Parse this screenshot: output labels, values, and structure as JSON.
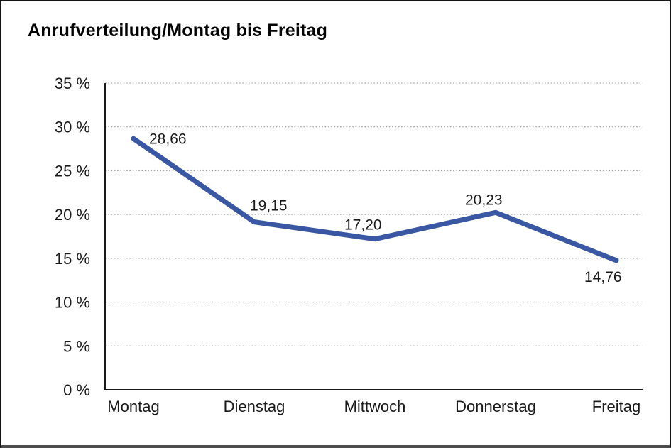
{
  "chart_data": {
    "type": "line",
    "title": "Anrufverteilung/Montag bis Freitag",
    "categories": [
      "Montag",
      "Dienstag",
      "Mittwoch",
      "Donnerstag",
      "Freitag"
    ],
    "values": [
      28.66,
      19.15,
      17.2,
      20.23,
      14.76
    ],
    "value_labels": [
      "28,66",
      "19,15",
      "17,20",
      "20,23",
      "14,76"
    ],
    "series_name": "Anrufverteilung",
    "xlabel": "",
    "ylabel": "",
    "ylim": [
      0,
      35
    ],
    "ytick_step": 5,
    "ytick_labels": [
      "0 %",
      "5 %",
      "10 %",
      "15 %",
      "20 %",
      "25 %",
      "30 %",
      "35 %"
    ],
    "grid": "horizontal-dotted",
    "legend_position": "none",
    "line_color": "#3a57a3",
    "axis_color": "#1a1a1a",
    "gridline_color": "#8c8c8c",
    "decimal_separator": ","
  }
}
